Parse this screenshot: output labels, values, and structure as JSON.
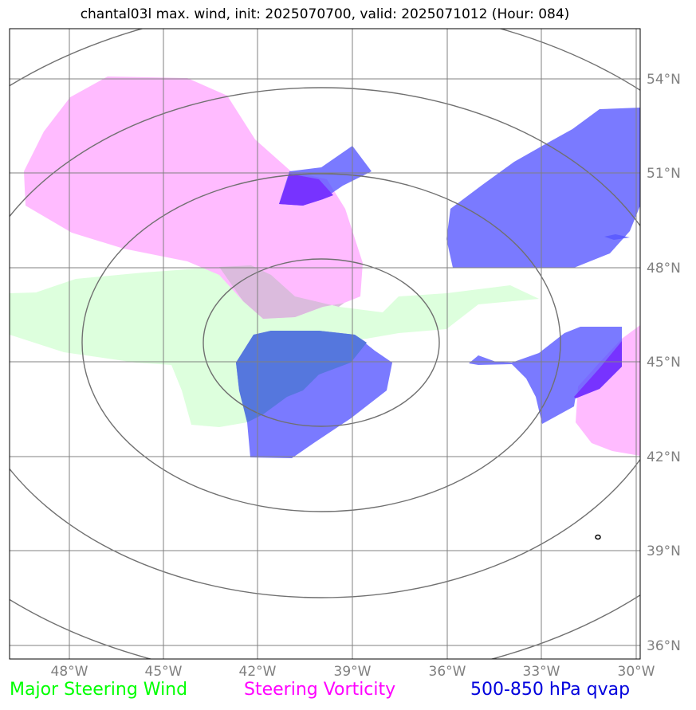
{
  "title": "chantal03l max. wind, init: 2025070700, valid: 2025071012 (Hour: 084)",
  "map": {
    "lat_labels": [
      "54°N",
      "51°N",
      "48°N",
      "45°N",
      "42°N",
      "39°N",
      "36°N"
    ],
    "lon_labels": [
      "48°W",
      "45°W",
      "42°W",
      "39°W",
      "36°W",
      "33°W",
      "30°W"
    ],
    "gridline_color": "#808080",
    "range_ring_color": "#707070"
  },
  "legend": {
    "wind": {
      "label": "Major Steering Wind",
      "color": "#00ff00"
    },
    "vorticity": {
      "label": "Steering Vorticity",
      "color": "#ff00ff"
    },
    "qvap": {
      "label": "500-850 hPa qvap",
      "color": "#0000dd"
    }
  },
  "layers": {
    "wind_fill": "#ddffdd",
    "vorticity_fill": "#ffbbff",
    "qvap_fill": "#5555ff",
    "overlap_fill": "#7733ff"
  }
}
